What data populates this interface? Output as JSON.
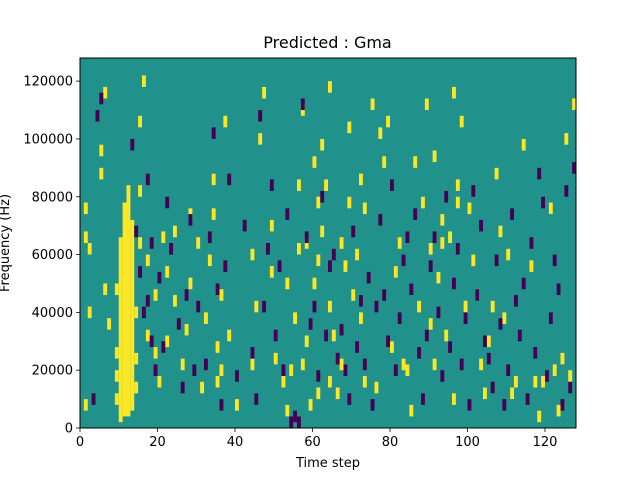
{
  "chart_data": {
    "type": "heatmap",
    "title": "Predicted : Gma",
    "xlabel": "Time step",
    "ylabel": "Frequency (Hz)",
    "xlim": [
      0,
      128
    ],
    "ylim": [
      0,
      128000
    ],
    "grid": false,
    "x_ticks": [
      0,
      20,
      40,
      60,
      80,
      100,
      120
    ],
    "x_tick_labels": [
      "0",
      "20",
      "40",
      "60",
      "80",
      "100",
      "120"
    ],
    "y_ticks": [
      0,
      20000,
      40000,
      60000,
      80000,
      100000,
      120000
    ],
    "y_tick_labels": [
      "0",
      "20000",
      "40000",
      "60000",
      "80000",
      "100000",
      "120000"
    ],
    "colormap": "viridis",
    "colors": {
      "background": "#21918c",
      "high": "#fde725",
      "low": "#440154"
    },
    "background_value": 0,
    "cell_height_hz": 4000,
    "cell_width_steps": 1,
    "high_columns": [
      {
        "x": 10,
        "y_ranges": [
          [
            2000,
            66000
          ]
        ]
      },
      {
        "x": 11,
        "y_ranges": [
          [
            4000,
            78000
          ]
        ]
      },
      {
        "x": 12,
        "y_ranges": [
          [
            4000,
            84000
          ]
        ]
      },
      {
        "x": 13,
        "y_ranges": [
          [
            6000,
            72000
          ]
        ]
      }
    ],
    "high_cells": [
      [
        1,
        6000
      ],
      [
        1,
        64000
      ],
      [
        1,
        74000
      ],
      [
        2,
        60000
      ],
      [
        2,
        38000
      ],
      [
        5,
        94000
      ],
      [
        5,
        86000
      ],
      [
        6,
        46000
      ],
      [
        7,
        34000
      ],
      [
        6,
        114000
      ],
      [
        9,
        46000
      ],
      [
        9,
        24000
      ],
      [
        9,
        16000
      ],
      [
        9,
        8000
      ],
      [
        14,
        12000
      ],
      [
        14,
        22000
      ],
      [
        14,
        38000
      ],
      [
        15,
        62000
      ],
      [
        15,
        80000
      ],
      [
        15,
        104000
      ],
      [
        16,
        118000
      ],
      [
        17,
        56000
      ],
      [
        17,
        30000
      ],
      [
        19,
        24000
      ],
      [
        20,
        14000
      ],
      [
        19,
        44000
      ],
      [
        21,
        64000
      ],
      [
        22,
        28000
      ],
      [
        22,
        52000
      ],
      [
        24,
        42000
      ],
      [
        24,
        66000
      ],
      [
        26,
        20000
      ],
      [
        27,
        32000
      ],
      [
        28,
        48000
      ],
      [
        28,
        72000
      ],
      [
        30,
        62000
      ],
      [
        31,
        12000
      ],
      [
        32,
        36000
      ],
      [
        33,
        56000
      ],
      [
        34,
        84000
      ],
      [
        34,
        72000
      ],
      [
        35,
        26000
      ],
      [
        35,
        14000
      ],
      [
        36,
        18000
      ],
      [
        36,
        44000
      ],
      [
        37,
        104000
      ],
      [
        38,
        30000
      ],
      [
        40,
        6000
      ],
      [
        44,
        58000
      ],
      [
        44,
        20000
      ],
      [
        45,
        40000
      ],
      [
        46,
        98000
      ],
      [
        47,
        114000
      ],
      [
        49,
        52000
      ],
      [
        49,
        68000
      ],
      [
        50,
        22000
      ],
      [
        52,
        14000
      ],
      [
        53,
        48000
      ],
      [
        53,
        4000
      ],
      [
        54,
        18000
      ],
      [
        55,
        36000
      ],
      [
        56,
        60000
      ],
      [
        56,
        82000
      ],
      [
        57,
        20000
      ],
      [
        57,
        108000
      ],
      [
        58,
        62000
      ],
      [
        58,
        28000
      ],
      [
        59,
        6000
      ],
      [
        60,
        90000
      ],
      [
        60,
        48000
      ],
      [
        61,
        10000
      ],
      [
        61,
        56000
      ],
      [
        61,
        76000
      ],
      [
        62,
        66000
      ],
      [
        62,
        96000
      ],
      [
        63,
        82000
      ],
      [
        64,
        14000
      ],
      [
        64,
        40000
      ],
      [
        64,
        116000
      ],
      [
        65,
        30000
      ],
      [
        66,
        10000
      ],
      [
        67,
        62000
      ],
      [
        67,
        20000
      ],
      [
        68,
        54000
      ],
      [
        69,
        76000
      ],
      [
        69,
        102000
      ],
      [
        70,
        44000
      ],
      [
        71,
        58000
      ],
      [
        72,
        84000
      ],
      [
        72,
        36000
      ],
      [
        73,
        14000
      ],
      [
        73,
        74000
      ],
      [
        75,
        110000
      ],
      [
        76,
        12000
      ],
      [
        77,
        100000
      ],
      [
        78,
        90000
      ],
      [
        79,
        104000
      ],
      [
        80,
        26000
      ],
      [
        81,
        52000
      ],
      [
        82,
        62000
      ],
      [
        83,
        20000
      ],
      [
        84,
        18000
      ],
      [
        85,
        4000
      ],
      [
        86,
        90000
      ],
      [
        87,
        40000
      ],
      [
        88,
        76000
      ],
      [
        89,
        110000
      ],
      [
        90,
        34000
      ],
      [
        90,
        60000
      ],
      [
        91,
        20000
      ],
      [
        91,
        92000
      ],
      [
        92,
        50000
      ],
      [
        93,
        70000
      ],
      [
        93,
        62000
      ],
      [
        94,
        30000
      ],
      [
        95,
        64000
      ],
      [
        96,
        114000
      ],
      [
        96,
        8000
      ],
      [
        97,
        82000
      ],
      [
        97,
        76000
      ],
      [
        98,
        104000
      ],
      [
        99,
        40000
      ],
      [
        100,
        74000
      ],
      [
        101,
        56000
      ],
      [
        102,
        44000
      ],
      [
        103,
        20000
      ],
      [
        104,
        10000
      ],
      [
        105,
        28000
      ],
      [
        106,
        40000
      ],
      [
        107,
        86000
      ],
      [
        108,
        66000
      ],
      [
        109,
        36000
      ],
      [
        110,
        58000
      ],
      [
        111,
        10000
      ],
      [
        112,
        14000
      ],
      [
        114,
        96000
      ],
      [
        116,
        54000
      ],
      [
        117,
        14000
      ],
      [
        118,
        2000
      ],
      [
        119,
        14000
      ],
      [
        121,
        74000
      ],
      [
        123,
        4000
      ],
      [
        122,
        18000
      ],
      [
        124,
        22000
      ],
      [
        125,
        98000
      ],
      [
        126,
        16000
      ],
      [
        127,
        110000
      ]
    ],
    "low_cells": [
      [
        3,
        8000
      ],
      [
        4,
        106000
      ],
      [
        5,
        112000
      ],
      [
        13,
        96000
      ],
      [
        14,
        66000
      ],
      [
        15,
        52000
      ],
      [
        16,
        38000
      ],
      [
        17,
        84000
      ],
      [
        17,
        42000
      ],
      [
        18,
        28000
      ],
      [
        18,
        62000
      ],
      [
        19,
        18000
      ],
      [
        20,
        50000
      ],
      [
        21,
        26000
      ],
      [
        22,
        76000
      ],
      [
        23,
        60000
      ],
      [
        25,
        34000
      ],
      [
        26,
        12000
      ],
      [
        27,
        44000
      ],
      [
        28,
        70000
      ],
      [
        29,
        18000
      ],
      [
        30,
        40000
      ],
      [
        32,
        20000
      ],
      [
        33,
        64000
      ],
      [
        34,
        100000
      ],
      [
        35,
        46000
      ],
      [
        36,
        6000
      ],
      [
        37,
        54000
      ],
      [
        38,
        84000
      ],
      [
        40,
        16000
      ],
      [
        42,
        68000
      ],
      [
        44,
        24000
      ],
      [
        45,
        8000
      ],
      [
        46,
        106000
      ],
      [
        47,
        40000
      ],
      [
        48,
        60000
      ],
      [
        49,
        82000
      ],
      [
        50,
        30000
      ],
      [
        51,
        54000
      ],
      [
        52,
        18000
      ],
      [
        53,
        72000
      ],
      [
        54,
        0
      ],
      [
        55,
        2000
      ],
      [
        56,
        0
      ],
      [
        57,
        110000
      ],
      [
        58,
        64000
      ],
      [
        59,
        34000
      ],
      [
        60,
        40000
      ],
      [
        61,
        16000
      ],
      [
        62,
        78000
      ],
      [
        63,
        30000
      ],
      [
        64,
        54000
      ],
      [
        65,
        58000
      ],
      [
        66,
        22000
      ],
      [
        67,
        32000
      ],
      [
        68,
        18000
      ],
      [
        69,
        8000
      ],
      [
        70,
        66000
      ],
      [
        71,
        26000
      ],
      [
        72,
        42000
      ],
      [
        73,
        20000
      ],
      [
        74,
        50000
      ],
      [
        75,
        6000
      ],
      [
        76,
        40000
      ],
      [
        77,
        70000
      ],
      [
        78,
        44000
      ],
      [
        79,
        28000
      ],
      [
        80,
        82000
      ],
      [
        81,
        18000
      ],
      [
        82,
        36000
      ],
      [
        83,
        56000
      ],
      [
        84,
        64000
      ],
      [
        85,
        46000
      ],
      [
        86,
        72000
      ],
      [
        87,
        24000
      ],
      [
        88,
        8000
      ],
      [
        89,
        30000
      ],
      [
        90,
        54000
      ],
      [
        91,
        64000
      ],
      [
        92,
        38000
      ],
      [
        93,
        16000
      ],
      [
        94,
        78000
      ],
      [
        95,
        26000
      ],
      [
        96,
        48000
      ],
      [
        97,
        60000
      ],
      [
        98,
        20000
      ],
      [
        99,
        36000
      ],
      [
        100,
        6000
      ],
      [
        101,
        80000
      ],
      [
        102,
        44000
      ],
      [
        103,
        68000
      ],
      [
        104,
        28000
      ],
      [
        105,
        22000
      ],
      [
        106,
        12000
      ],
      [
        107,
        56000
      ],
      [
        108,
        34000
      ],
      [
        109,
        6000
      ],
      [
        110,
        18000
      ],
      [
        111,
        72000
      ],
      [
        112,
        42000
      ],
      [
        113,
        30000
      ],
      [
        114,
        48000
      ],
      [
        115,
        8000
      ],
      [
        116,
        62000
      ],
      [
        117,
        24000
      ],
      [
        118,
        86000
      ],
      [
        119,
        76000
      ],
      [
        120,
        16000
      ],
      [
        121,
        36000
      ],
      [
        122,
        56000
      ],
      [
        123,
        46000
      ],
      [
        124,
        6000
      ],
      [
        125,
        80000
      ],
      [
        126,
        12000
      ],
      [
        127,
        88000
      ]
    ]
  }
}
